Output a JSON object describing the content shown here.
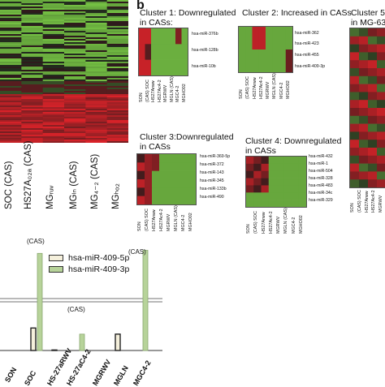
{
  "panel_b_letter": "b",
  "left_heatmap": {
    "column_labels": [
      "SOC (CAS)",
      "HS27A₀₂ₐ (CAS)",
      "MGᵣᵤᵥ",
      "MGₗₙ (CAS)",
      "MG₄₋₂ (CAS)",
      "MGₕₒ₂"
    ]
  },
  "clusters": [
    {
      "title_line1": "Cluster 1: Downregulated",
      "title_line2": "in CASs:",
      "rows": [
        "hsa-miR-376b",
        "hsa-miR-128b",
        "hsa-miR-10b"
      ],
      "columns": [
        "SON",
        "(CAS) SOC",
        "HS27Arww",
        "HS27Ac4-2",
        "MGRWV",
        "MGLN (CAS)",
        "MGC4-2",
        "MGHO02"
      ]
    },
    {
      "title_line1": "Cluster 2: Increased in CASs",
      "title_line2": "",
      "rows": [
        "hsa-miR-362",
        "hsa-miR-423",
        "hsa-miR-455",
        "hsa-miR-409-3p"
      ],
      "columns": [
        "SON",
        "(CAS) SOC",
        "HS27Arww",
        "HS27Ac4-2",
        "MGRWV",
        "MGLN (CAS)",
        "MGC4-2",
        "MGHO02"
      ]
    },
    {
      "title_line1": "Cluster 3:Downregulated",
      "title_line2": "in CASs",
      "rows": [
        "hsa-miR-369-5p",
        "hsa-miR-372",
        "hsa-miR-143",
        "hsa-miR-345",
        "hsa-miR-133b",
        "hsa-miR-490"
      ],
      "columns": [
        "SON",
        "(CAS) SOC",
        "HS27Arww",
        "HS27Ac4-2",
        "MGRWV",
        "MGLN (CAS)",
        "MGC4-2",
        "MGHO02"
      ]
    },
    {
      "title_line1": "Cluster 4: Downregulated",
      "title_line2": "in CASs",
      "rows": [
        "hsa-miR-432",
        "hsa-miR-1",
        "hsa-miR-504",
        "hsa-miR-328",
        "hsa-miR-483",
        "hsa-miR-34c",
        "hsa-miR-329"
      ],
      "columns": [
        "SON",
        "(CAS) SOC",
        "HS27Arww",
        "HS27Ac4-2",
        "MGRWV",
        "MGLN (CAS)",
        "MGC4-2",
        "MGHO02"
      ]
    },
    {
      "title_line1": "Cluster 5:",
      "title_line2": "in MG-63",
      "rows": [],
      "columns": [
        "SON",
        "(CAS) SOC",
        "HS27Arww",
        "HS27Ac4-2",
        "MGRWV"
      ]
    }
  ],
  "chart_data": {
    "type": "bar",
    "categories": [
      "SON",
      "SOC",
      "HS-27aRWV",
      "HS-27aC4-2",
      "MGRWV",
      "MGLN",
      "MGC4-2"
    ],
    "series": [
      {
        "name": "hsa-miR-409-5p",
        "values": [
          0,
          2.2,
          0.05,
          0,
          0,
          1.6,
          0
        ],
        "color": "#f5f0dc"
      },
      {
        "name": "hsa-miR-409-3p",
        "values": [
          0,
          9.5,
          0,
          1.6,
          0,
          0,
          9.8
        ],
        "color": "#b7d39a"
      }
    ],
    "annotations": [
      "(CAS)",
      "(CAS)",
      "(CAS)"
    ],
    "ylim": [
      0,
      10
    ],
    "legend_position": "top-center"
  },
  "colors": {
    "heat_green": "#74c043",
    "heat_red": "#e5232a",
    "heat_black": "#1a1a1a"
  }
}
